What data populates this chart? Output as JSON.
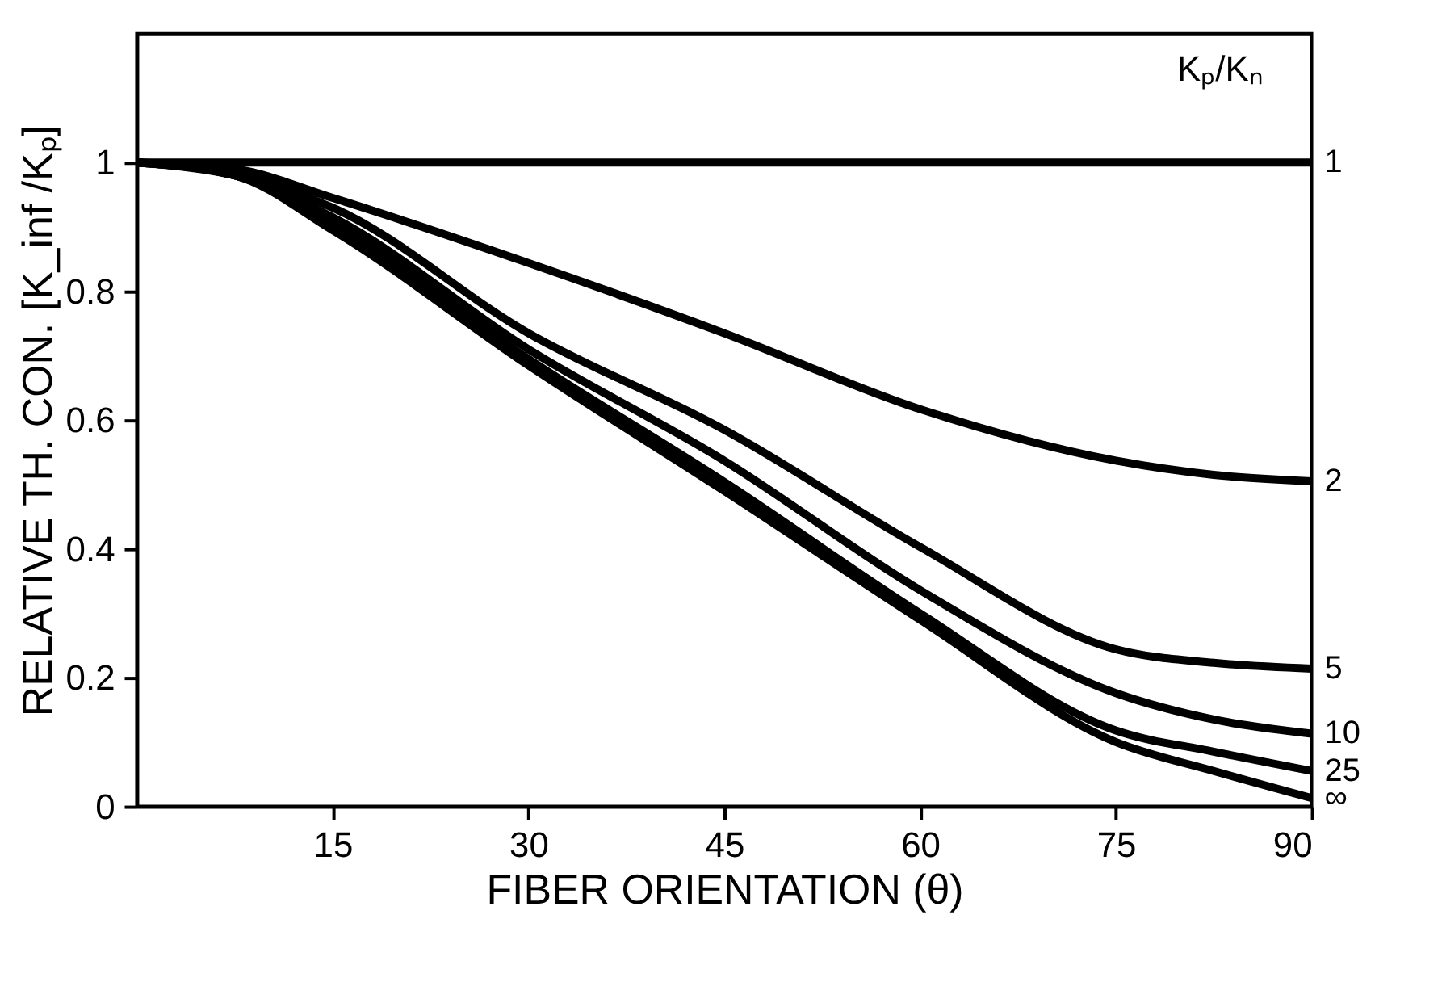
{
  "chart_data": {
    "type": "line",
    "xlabel": "FIBER ORIENTATION (θ)",
    "ylabel": "RELATIVE TH. CON. [K_inf /Kₚ]",
    "legend_title": "Kₚ/Kₙ",
    "x": [
      0,
      7.5,
      15,
      30,
      45,
      60,
      75,
      82.5,
      90
    ],
    "series": [
      {
        "name": "1",
        "color": "#000000",
        "values": [
          1,
          1,
          1,
          1,
          1,
          1,
          1,
          1,
          1
        ]
      },
      {
        "name": "2",
        "color": "#000000",
        "values": [
          1,
          0.99,
          0.945,
          0.844,
          0.735,
          0.617,
          0.537,
          0.515,
          0.505
        ]
      },
      {
        "name": "5",
        "color": "#000000",
        "values": [
          1,
          0.98,
          0.93,
          0.735,
          0.585,
          0.403,
          0.244,
          0.223,
          0.214
        ]
      },
      {
        "name": "10",
        "color": "#000000",
        "values": [
          1,
          0.98,
          0.915,
          0.71,
          0.537,
          0.336,
          0.176,
          0.135,
          0.113
        ]
      },
      {
        "name": "25",
        "color": "#000000",
        "values": [
          1,
          0.98,
          0.905,
          0.695,
          0.504,
          0.3,
          0.118,
          0.085,
          0.055
        ]
      },
      {
        "name": "∞",
        "color": "#000000",
        "values": [
          1,
          0.98,
          0.895,
          0.685,
          0.49,
          0.29,
          0.1,
          0.055,
          0.013
        ]
      }
    ],
    "xlim": [
      0,
      90
    ],
    "ylim": [
      0,
      1.2
    ],
    "xticks": [
      15,
      30,
      45,
      60,
      75,
      90
    ],
    "yticks": [
      0,
      0.2,
      0.4,
      0.6,
      0.8,
      1
    ],
    "grid": false,
    "marker": "none",
    "line_style": "solid"
  }
}
